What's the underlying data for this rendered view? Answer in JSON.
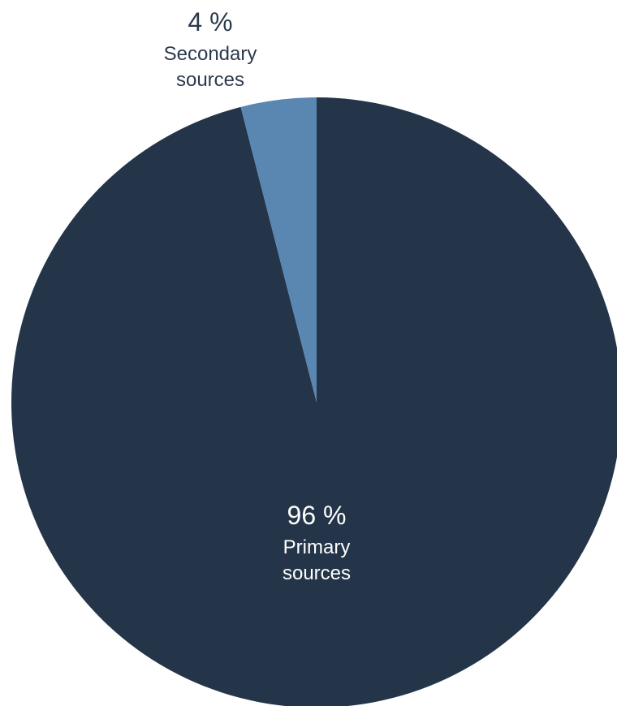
{
  "chart_data": {
    "type": "pie",
    "start_angle_deg": 0,
    "direction": "clockwise",
    "slices": [
      {
        "label": "Primary sources",
        "value": 96,
        "value_text": "96 %",
        "name_lines": [
          "Primary",
          "sources"
        ],
        "color": "#243549",
        "label_color": "#ffffff",
        "label_position": "inside"
      },
      {
        "label": "Secondary sources",
        "value": 4,
        "value_text": "4 %",
        "name_lines": [
          "Secondary",
          "sources"
        ],
        "color": "#5a86b2",
        "label_color": "#2b3a4d",
        "label_position": "outside"
      }
    ],
    "legend": "none"
  }
}
